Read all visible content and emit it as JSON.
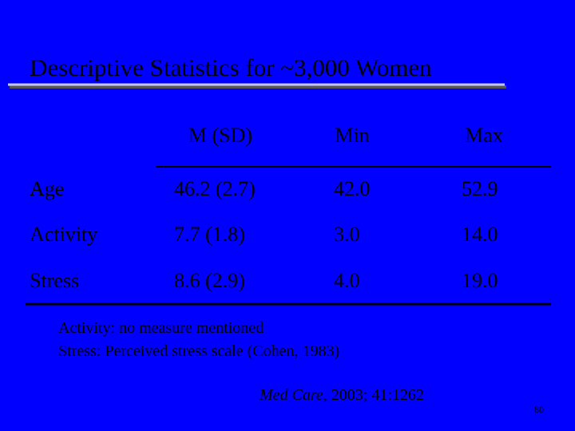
{
  "title": "Descriptive Statistics for ~3,000 Women",
  "table": {
    "header": [
      "M (SD)",
      "Min",
      "Max"
    ],
    "rows": [
      [
        "Age",
        "46.2 (2.7)",
        "42.0",
        "52.9"
      ],
      [
        "Activity",
        "7.7 (1.8)",
        "3.0",
        "14.0"
      ],
      [
        "Stress",
        "8.6 (2.9)",
        "4.0",
        "19.0"
      ]
    ]
  },
  "notes": [
    "Activity: no measure mentioned",
    "Stress: Perceived stress scale (Cohen, 1983)"
  ],
  "citation": {
    "journal": "Med Care",
    "details": ", 2003; 41:1262"
  },
  "page_number": "80"
}
